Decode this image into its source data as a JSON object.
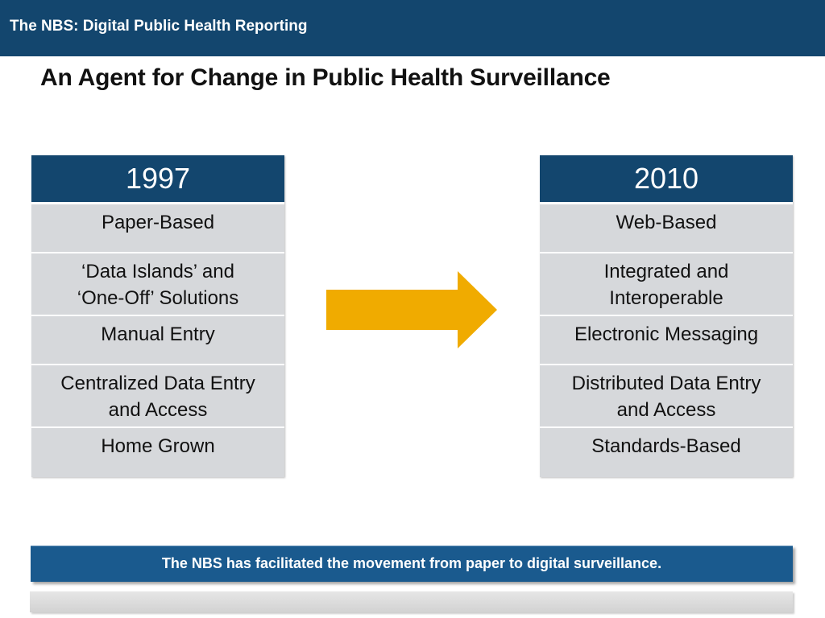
{
  "header": {
    "title": "The NBS: Digital Public Health Reporting"
  },
  "slide": {
    "title": "An Agent for Change in Public Health Surveillance"
  },
  "colors": {
    "header_blue": "#13466e",
    "cell_gray": "#d6d8db",
    "arrow_gold": "#f0ab00",
    "banner_blue": "#1a5a8e"
  },
  "left_table": {
    "year": "1997",
    "rows": [
      [
        "Paper-Based"
      ],
      [
        "‘Data Islands’ and",
        "‘One-Off’ Solutions"
      ],
      [
        "Manual Entry"
      ],
      [
        "Centralized Data Entry",
        "and Access"
      ],
      [
        "Home Grown"
      ]
    ]
  },
  "right_table": {
    "year": "2010",
    "rows": [
      [
        "Web-Based"
      ],
      [
        "Integrated and",
        "Interoperable"
      ],
      [
        "Electronic Messaging"
      ],
      [
        "Distributed Data Entry",
        "and Access"
      ],
      [
        "Standards-Based"
      ]
    ]
  },
  "arrow": {
    "icon": "right-arrow-icon"
  },
  "banner": {
    "text": "The NBS has facilitated the movement from paper to digital surveillance."
  }
}
